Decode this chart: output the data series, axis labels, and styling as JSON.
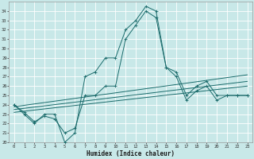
{
  "title": "",
  "xlabel": "Humidex (Indice chaleur)",
  "background_color": "#c8e8e8",
  "grid_color": "#ffffff",
  "line_color": "#1a6b6b",
  "xlim": [
    -0.5,
    23.5
  ],
  "ylim": [
    20,
    35
  ],
  "xticks": [
    0,
    1,
    2,
    3,
    4,
    5,
    6,
    7,
    8,
    9,
    10,
    11,
    12,
    13,
    14,
    15,
    16,
    17,
    18,
    19,
    20,
    21,
    22,
    23
  ],
  "yticks": [
    20,
    21,
    22,
    23,
    24,
    25,
    26,
    27,
    28,
    29,
    30,
    31,
    32,
    33,
    34
  ],
  "series": [
    {
      "x": [
        0,
        1,
        2,
        3,
        4,
        5,
        6,
        7,
        8,
        9,
        10,
        11,
        12,
        13,
        14,
        15,
        16,
        17,
        18,
        19,
        20,
        21,
        22,
        23
      ],
      "y": [
        24,
        23,
        22,
        23,
        23,
        20,
        21,
        27,
        27.5,
        29,
        29,
        32,
        33,
        34.5,
        34,
        28,
        27.5,
        25,
        26,
        26.5,
        25,
        25,
        25,
        25
      ],
      "marker": "+"
    },
    {
      "x": [
        0,
        1,
        2,
        3,
        4,
        5,
        6,
        7,
        8,
        9,
        10,
        11,
        12,
        13,
        14,
        15,
        16,
        17,
        18,
        19,
        20,
        21,
        22,
        23
      ],
      "y": [
        24,
        23.2,
        22.2,
        22.8,
        22.5,
        21,
        21.5,
        25,
        25,
        26,
        26,
        31,
        32.5,
        34,
        33.3,
        28,
        27,
        24.5,
        25.5,
        26,
        24.5,
        25,
        25,
        25
      ],
      "marker": "+"
    },
    {
      "x": [
        0,
        23
      ],
      "y": [
        23.2,
        26.0
      ],
      "marker": null
    },
    {
      "x": [
        0,
        23
      ],
      "y": [
        23.5,
        26.5
      ],
      "marker": null
    },
    {
      "x": [
        0,
        23
      ],
      "y": [
        23.8,
        27.2
      ],
      "marker": null
    }
  ]
}
